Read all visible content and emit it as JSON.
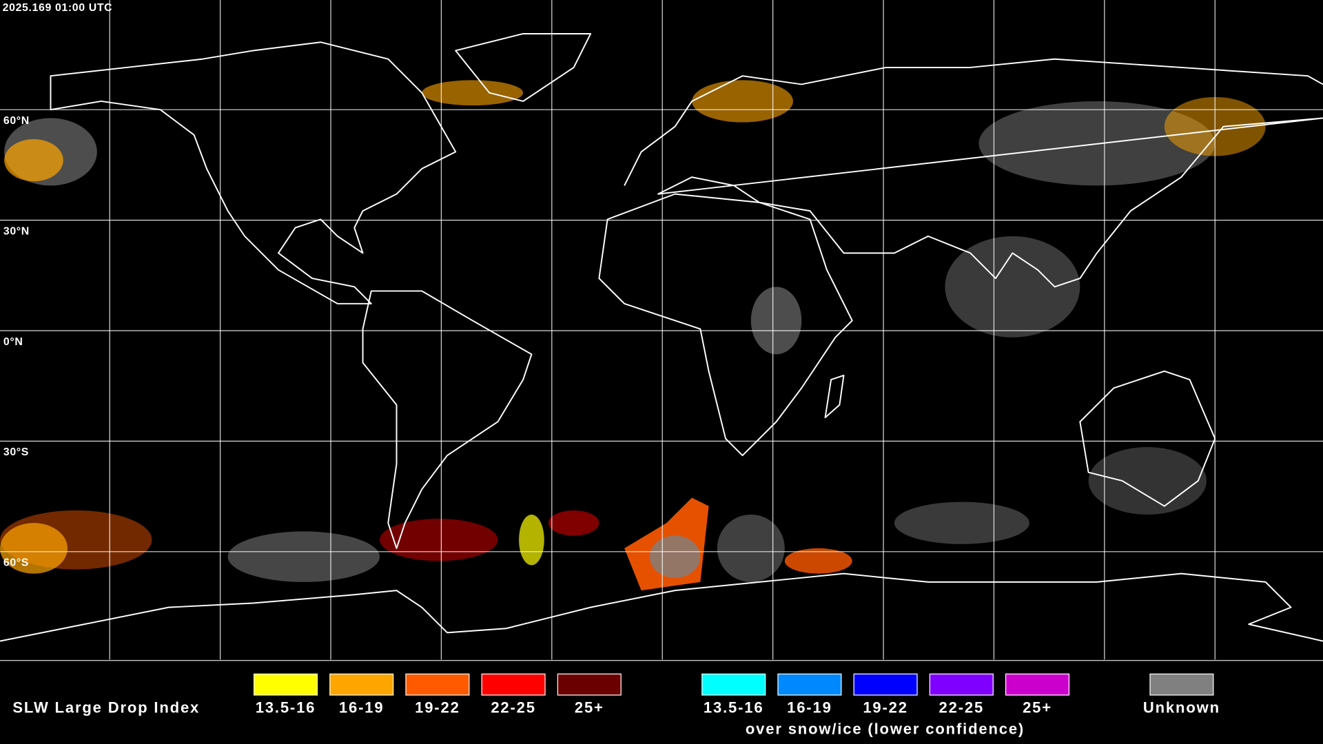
{
  "header": {
    "timestamp": "2025.169 01:00 UTC"
  },
  "latitude_labels": [
    "60°N",
    "30°N",
    "0°N",
    "30°S",
    "60°S"
  ],
  "legend": {
    "title": "SLW Large Drop Index",
    "items": [
      {
        "label": "13.5-16",
        "color": "#ffff00"
      },
      {
        "label": "16-19",
        "color": "#ffa500"
      },
      {
        "label": "19-22",
        "color": "#ff5a00"
      },
      {
        "label": "22-25",
        "color": "#ff0000"
      },
      {
        "label": "25+",
        "color": "#6b0000"
      }
    ],
    "snow_items": [
      {
        "label": "13.5-16",
        "color": "#00ffff"
      },
      {
        "label": "16-19",
        "color": "#0088ff"
      },
      {
        "label": "19-22",
        "color": "#0000ff"
      },
      {
        "label": "22-25",
        "color": "#7f00ff"
      },
      {
        "label": "25+",
        "color": "#cc00cc"
      }
    ],
    "snow_caption": "over snow/ice (lower confidence)",
    "unknown": {
      "label": "Unknown",
      "color": "#808080"
    }
  }
}
